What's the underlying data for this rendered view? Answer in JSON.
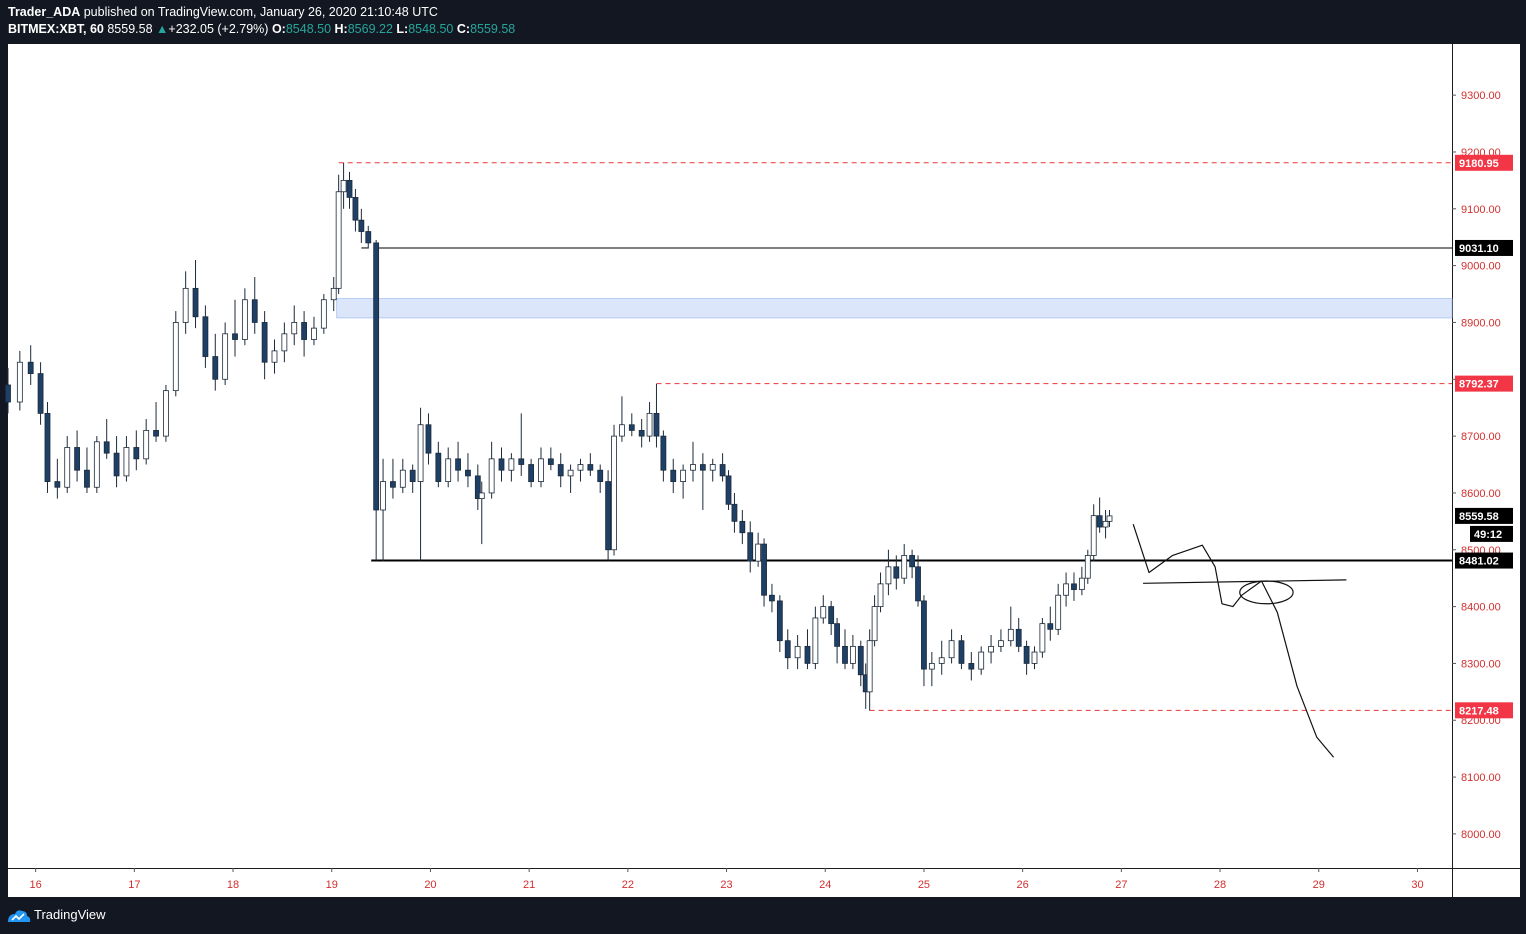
{
  "header": {
    "author": "Trader_ADA",
    "published_text": "published on TradingView.com, January 26, 2020 21:10:48 UTC",
    "symbol": "BITMEX:XBT, 60",
    "last": "8559.58",
    "change": "+232.05 (+2.79%)",
    "o_label": "O:",
    "o_value": "8548.50",
    "h_label": "H:",
    "h_value": "8569.22",
    "l_label": "L:",
    "l_value": "8548.50",
    "c_label": "C:",
    "c_value": "8559.58"
  },
  "footer": {
    "brand": "TradingView"
  },
  "colors": {
    "background": "#131722",
    "chart_bg": "#ffffff",
    "axis_text": "#d32f2f",
    "up_candle": "#ffffff",
    "down_candle": "#1e3f66",
    "red_line": "#e53935",
    "zone": "#dbe6fb",
    "accent_green": "#26a69a"
  },
  "chart_data": {
    "type": "candlestick",
    "timeframe": "60",
    "x_ticks": [
      "16",
      "17",
      "18",
      "19",
      "20",
      "21",
      "22",
      "23",
      "24",
      "25",
      "26",
      "27",
      "28",
      "29",
      "30"
    ],
    "x_range_days": [
      15.72,
      30.35
    ],
    "ylim": [
      7940,
      9390
    ],
    "y_ticks": [
      "9300.00",
      "9200.00",
      "9100.00",
      "9000.00",
      "8900.00",
      "8800.00",
      "8700.00",
      "8600.00",
      "8500.00",
      "8400.00",
      "8300.00",
      "8200.00",
      "8100.00",
      "8000.00"
    ],
    "levels": [
      {
        "value": 9180.95,
        "label": "9180.95",
        "style": "dashed-red",
        "from_day": 19.07
      },
      {
        "value": 9031.1,
        "label": "9031.10",
        "style": "solid-black",
        "from_day": 19.45
      },
      {
        "value": 8792.37,
        "label": "8792.37",
        "style": "dashed-red",
        "from_day": 22.29
      },
      {
        "value": 8481.02,
        "label": "8481.02",
        "style": "solid-black-bold",
        "from_day": 19.4
      },
      {
        "value": 8217.48,
        "label": "8217.48",
        "style": "dashed-red",
        "from_day": 24.45
      }
    ],
    "current_price": {
      "value": 8559.58,
      "label": "8559.58",
      "countdown": "49:12"
    },
    "zone": {
      "from_day": 19.05,
      "low": 8908,
      "high": 8942
    },
    "projection": [
      [
        27.12,
        8545
      ],
      [
        27.28,
        8460
      ],
      [
        27.52,
        8490
      ],
      [
        27.82,
        8508
      ],
      [
        27.95,
        8470
      ],
      [
        28.02,
        8405
      ],
      [
        28.13,
        8400
      ],
      [
        28.22,
        8420
      ],
      [
        28.42,
        8445
      ],
      [
        28.58,
        8390
      ],
      [
        28.78,
        8260
      ],
      [
        28.98,
        8170
      ],
      [
        29.15,
        8135
      ]
    ],
    "projection_line": {
      "from": [
        27.22,
        8441
      ],
      "to": [
        29.28,
        8447
      ]
    },
    "projection_ellipse": {
      "center": [
        28.47,
        8425
      ],
      "rx_days": 0.27,
      "ry_price": 20
    },
    "series": [
      {
        "t": 15.72,
        "o": 8790,
        "h": 8820,
        "l": 8740,
        "c": 8760
      },
      {
        "t": 15.84,
        "o": 8760,
        "h": 8850,
        "l": 8745,
        "c": 8830
      },
      {
        "t": 15.95,
        "o": 8830,
        "h": 8860,
        "l": 8790,
        "c": 8810
      },
      {
        "t": 16.05,
        "o": 8810,
        "h": 8830,
        "l": 8720,
        "c": 8740
      },
      {
        "t": 16.12,
        "o": 8740,
        "h": 8760,
        "l": 8600,
        "c": 8620
      },
      {
        "t": 16.22,
        "o": 8620,
        "h": 8660,
        "l": 8590,
        "c": 8610
      },
      {
        "t": 16.32,
        "o": 8610,
        "h": 8700,
        "l": 8600,
        "c": 8680
      },
      {
        "t": 16.42,
        "o": 8680,
        "h": 8710,
        "l": 8620,
        "c": 8640
      },
      {
        "t": 16.52,
        "o": 8640,
        "h": 8680,
        "l": 8600,
        "c": 8610
      },
      {
        "t": 16.62,
        "o": 8610,
        "h": 8700,
        "l": 8600,
        "c": 8690
      },
      {
        "t": 16.72,
        "o": 8690,
        "h": 8730,
        "l": 8660,
        "c": 8670
      },
      {
        "t": 16.82,
        "o": 8670,
        "h": 8700,
        "l": 8610,
        "c": 8630
      },
      {
        "t": 16.92,
        "o": 8630,
        "h": 8700,
        "l": 8620,
        "c": 8680
      },
      {
        "t": 17.02,
        "o": 8680,
        "h": 8710,
        "l": 8640,
        "c": 8660
      },
      {
        "t": 17.12,
        "o": 8660,
        "h": 8730,
        "l": 8650,
        "c": 8710
      },
      {
        "t": 17.22,
        "o": 8710,
        "h": 8760,
        "l": 8690,
        "c": 8700
      },
      {
        "t": 17.32,
        "o": 8700,
        "h": 8790,
        "l": 8690,
        "c": 8780
      },
      {
        "t": 17.42,
        "o": 8780,
        "h": 8920,
        "l": 8770,
        "c": 8900
      },
      {
        "t": 17.52,
        "o": 8900,
        "h": 8990,
        "l": 8880,
        "c": 8960
      },
      {
        "t": 17.62,
        "o": 8960,
        "h": 9010,
        "l": 8890,
        "c": 8910
      },
      {
        "t": 17.72,
        "o": 8910,
        "h": 8930,
        "l": 8820,
        "c": 8840
      },
      {
        "t": 17.82,
        "o": 8840,
        "h": 8880,
        "l": 8780,
        "c": 8800
      },
      {
        "t": 17.92,
        "o": 8800,
        "h": 8900,
        "l": 8790,
        "c": 8880
      },
      {
        "t": 18.02,
        "o": 8880,
        "h": 8940,
        "l": 8840,
        "c": 8870
      },
      {
        "t": 18.12,
        "o": 8870,
        "h": 8960,
        "l": 8860,
        "c": 8940
      },
      {
        "t": 18.22,
        "o": 8940,
        "h": 8980,
        "l": 8880,
        "c": 8900
      },
      {
        "t": 18.32,
        "o": 8900,
        "h": 8920,
        "l": 8800,
        "c": 8830
      },
      {
        "t": 18.42,
        "o": 8830,
        "h": 8870,
        "l": 8810,
        "c": 8850
      },
      {
        "t": 18.52,
        "o": 8850,
        "h": 8900,
        "l": 8830,
        "c": 8880
      },
      {
        "t": 18.62,
        "o": 8880,
        "h": 8930,
        "l": 8860,
        "c": 8900
      },
      {
        "t": 18.72,
        "o": 8900,
        "h": 8920,
        "l": 8840,
        "c": 8870
      },
      {
        "t": 18.82,
        "o": 8870,
        "h": 8910,
        "l": 8860,
        "c": 8890
      },
      {
        "t": 18.92,
        "o": 8890,
        "h": 8950,
        "l": 8880,
        "c": 8940
      },
      {
        "t": 19.02,
        "o": 8940,
        "h": 8980,
        "l": 8920,
        "c": 8960
      },
      {
        "t": 19.07,
        "o": 8960,
        "h": 9160,
        "l": 8950,
        "c": 9130
      },
      {
        "t": 19.12,
        "o": 9130,
        "h": 9181,
        "l": 9100,
        "c": 9150
      },
      {
        "t": 19.18,
        "o": 9150,
        "h": 9165,
        "l": 9100,
        "c": 9120
      },
      {
        "t": 19.24,
        "o": 9120,
        "h": 9135,
        "l": 9060,
        "c": 9080
      },
      {
        "t": 19.3,
        "o": 9080,
        "h": 9100,
        "l": 9040,
        "c": 9060
      },
      {
        "t": 19.37,
        "o": 9060,
        "h": 9070,
        "l": 9030,
        "c": 9040
      },
      {
        "t": 19.45,
        "o": 9040,
        "h": 9045,
        "l": 8481,
        "c": 8570
      },
      {
        "t": 19.52,
        "o": 8570,
        "h": 8660,
        "l": 8480,
        "c": 8620
      },
      {
        "t": 19.62,
        "o": 8620,
        "h": 8660,
        "l": 8590,
        "c": 8610
      },
      {
        "t": 19.72,
        "o": 8610,
        "h": 8660,
        "l": 8600,
        "c": 8640
      },
      {
        "t": 19.82,
        "o": 8640,
        "h": 8650,
        "l": 8600,
        "c": 8620
      },
      {
        "t": 19.9,
        "o": 8620,
        "h": 8750,
        "l": 8481,
        "c": 8720
      },
      {
        "t": 19.98,
        "o": 8720,
        "h": 8740,
        "l": 8650,
        "c": 8670
      },
      {
        "t": 20.08,
        "o": 8670,
        "h": 8690,
        "l": 8610,
        "c": 8620
      },
      {
        "t": 20.18,
        "o": 8620,
        "h": 8680,
        "l": 8610,
        "c": 8660
      },
      {
        "t": 20.28,
        "o": 8660,
        "h": 8690,
        "l": 8620,
        "c": 8640
      },
      {
        "t": 20.38,
        "o": 8640,
        "h": 8670,
        "l": 8610,
        "c": 8630
      },
      {
        "t": 20.48,
        "o": 8630,
        "h": 8650,
        "l": 8570,
        "c": 8590
      },
      {
        "t": 20.52,
        "o": 8590,
        "h": 8620,
        "l": 8510,
        "c": 8600
      },
      {
        "t": 20.62,
        "o": 8600,
        "h": 8690,
        "l": 8590,
        "c": 8660
      },
      {
        "t": 20.72,
        "o": 8660,
        "h": 8680,
        "l": 8620,
        "c": 8640
      },
      {
        "t": 20.82,
        "o": 8640,
        "h": 8670,
        "l": 8620,
        "c": 8660
      },
      {
        "t": 20.92,
        "o": 8660,
        "h": 8740,
        "l": 8630,
        "c": 8650
      },
      {
        "t": 21.02,
        "o": 8650,
        "h": 8660,
        "l": 8610,
        "c": 8620
      },
      {
        "t": 21.12,
        "o": 8620,
        "h": 8680,
        "l": 8610,
        "c": 8660
      },
      {
        "t": 21.22,
        "o": 8660,
        "h": 8680,
        "l": 8640,
        "c": 8650
      },
      {
        "t": 21.32,
        "o": 8650,
        "h": 8670,
        "l": 8610,
        "c": 8630
      },
      {
        "t": 21.42,
        "o": 8630,
        "h": 8650,
        "l": 8600,
        "c": 8640
      },
      {
        "t": 21.52,
        "o": 8640,
        "h": 8660,
        "l": 8620,
        "c": 8650
      },
      {
        "t": 21.62,
        "o": 8650,
        "h": 8670,
        "l": 8630,
        "c": 8640
      },
      {
        "t": 21.72,
        "o": 8640,
        "h": 8650,
        "l": 8600,
        "c": 8620
      },
      {
        "t": 21.8,
        "o": 8620,
        "h": 8640,
        "l": 8481,
        "c": 8500
      },
      {
        "t": 21.86,
        "o": 8500,
        "h": 8720,
        "l": 8490,
        "c": 8700
      },
      {
        "t": 21.94,
        "o": 8700,
        "h": 8770,
        "l": 8690,
        "c": 8720
      },
      {
        "t": 22.04,
        "o": 8720,
        "h": 8740,
        "l": 8700,
        "c": 8710
      },
      {
        "t": 22.14,
        "o": 8710,
        "h": 8730,
        "l": 8680,
        "c": 8700
      },
      {
        "t": 22.22,
        "o": 8700,
        "h": 8760,
        "l": 8690,
        "c": 8740
      },
      {
        "t": 22.29,
        "o": 8740,
        "h": 8792,
        "l": 8680,
        "c": 8700
      },
      {
        "t": 22.36,
        "o": 8700,
        "h": 8710,
        "l": 8620,
        "c": 8640
      },
      {
        "t": 22.46,
        "o": 8640,
        "h": 8660,
        "l": 8600,
        "c": 8620
      },
      {
        "t": 22.56,
        "o": 8620,
        "h": 8650,
        "l": 8590,
        "c": 8640
      },
      {
        "t": 22.66,
        "o": 8640,
        "h": 8690,
        "l": 8620,
        "c": 8650
      },
      {
        "t": 22.76,
        "o": 8650,
        "h": 8670,
        "l": 8570,
        "c": 8640
      },
      {
        "t": 22.86,
        "o": 8640,
        "h": 8660,
        "l": 8620,
        "c": 8650
      },
      {
        "t": 22.96,
        "o": 8650,
        "h": 8670,
        "l": 8620,
        "c": 8630
      },
      {
        "t": 23.02,
        "o": 8630,
        "h": 8640,
        "l": 8570,
        "c": 8580
      },
      {
        "t": 23.08,
        "o": 8580,
        "h": 8600,
        "l": 8530,
        "c": 8550
      },
      {
        "t": 23.16,
        "o": 8550,
        "h": 8570,
        "l": 8510,
        "c": 8530
      },
      {
        "t": 23.24,
        "o": 8530,
        "h": 8550,
        "l": 8460,
        "c": 8480
      },
      {
        "t": 23.32,
        "o": 8480,
        "h": 8530,
        "l": 8470,
        "c": 8510
      },
      {
        "t": 23.38,
        "o": 8510,
        "h": 8520,
        "l": 8400,
        "c": 8420
      },
      {
        "t": 23.46,
        "o": 8420,
        "h": 8440,
        "l": 8390,
        "c": 8410
      },
      {
        "t": 23.54,
        "o": 8410,
        "h": 8420,
        "l": 8320,
        "c": 8340
      },
      {
        "t": 23.62,
        "o": 8340,
        "h": 8360,
        "l": 8290,
        "c": 8310
      },
      {
        "t": 23.72,
        "o": 8310,
        "h": 8350,
        "l": 8290,
        "c": 8330
      },
      {
        "t": 23.82,
        "o": 8330,
        "h": 8360,
        "l": 8290,
        "c": 8300
      },
      {
        "t": 23.9,
        "o": 8300,
        "h": 8400,
        "l": 8290,
        "c": 8380
      },
      {
        "t": 23.98,
        "o": 8380,
        "h": 8420,
        "l": 8370,
        "c": 8400
      },
      {
        "t": 24.06,
        "o": 8400,
        "h": 8410,
        "l": 8350,
        "c": 8370
      },
      {
        "t": 24.12,
        "o": 8370,
        "h": 8380,
        "l": 8300,
        "c": 8330
      },
      {
        "t": 24.2,
        "o": 8330,
        "h": 8360,
        "l": 8290,
        "c": 8300
      },
      {
        "t": 24.28,
        "o": 8300,
        "h": 8350,
        "l": 8290,
        "c": 8330
      },
      {
        "t": 24.36,
        "o": 8330,
        "h": 8340,
        "l": 8260,
        "c": 8280
      },
      {
        "t": 24.41,
        "o": 8280,
        "h": 8300,
        "l": 8220,
        "c": 8250
      },
      {
        "t": 24.45,
        "o": 8250,
        "h": 8360,
        "l": 8217,
        "c": 8340
      },
      {
        "t": 24.5,
        "o": 8340,
        "h": 8420,
        "l": 8330,
        "c": 8400
      },
      {
        "t": 24.56,
        "o": 8400,
        "h": 8460,
        "l": 8390,
        "c": 8440
      },
      {
        "t": 24.64,
        "o": 8440,
        "h": 8500,
        "l": 8420,
        "c": 8470
      },
      {
        "t": 24.72,
        "o": 8470,
        "h": 8490,
        "l": 8430,
        "c": 8450
      },
      {
        "t": 24.8,
        "o": 8450,
        "h": 8510,
        "l": 8440,
        "c": 8490
      },
      {
        "t": 24.88,
        "o": 8490,
        "h": 8500,
        "l": 8450,
        "c": 8470
      },
      {
        "t": 24.94,
        "o": 8470,
        "h": 8490,
        "l": 8400,
        "c": 8410
      },
      {
        "t": 25.0,
        "o": 8410,
        "h": 8420,
        "l": 8260,
        "c": 8290
      },
      {
        "t": 25.08,
        "o": 8290,
        "h": 8320,
        "l": 8260,
        "c": 8300
      },
      {
        "t": 25.18,
        "o": 8300,
        "h": 8340,
        "l": 8280,
        "c": 8310
      },
      {
        "t": 25.28,
        "o": 8310,
        "h": 8360,
        "l": 8300,
        "c": 8340
      },
      {
        "t": 25.38,
        "o": 8340,
        "h": 8350,
        "l": 8290,
        "c": 8300
      },
      {
        "t": 25.48,
        "o": 8300,
        "h": 8320,
        "l": 8270,
        "c": 8290
      },
      {
        "t": 25.58,
        "o": 8290,
        "h": 8330,
        "l": 8280,
        "c": 8320
      },
      {
        "t": 25.68,
        "o": 8320,
        "h": 8350,
        "l": 8300,
        "c": 8330
      },
      {
        "t": 25.78,
        "o": 8330,
        "h": 8360,
        "l": 8320,
        "c": 8340
      },
      {
        "t": 25.88,
        "o": 8340,
        "h": 8400,
        "l": 8330,
        "c": 8360
      },
      {
        "t": 25.96,
        "o": 8360,
        "h": 8380,
        "l": 8320,
        "c": 8330
      },
      {
        "t": 26.04,
        "o": 8330,
        "h": 8340,
        "l": 8280,
        "c": 8300
      },
      {
        "t": 26.12,
        "o": 8300,
        "h": 8330,
        "l": 8290,
        "c": 8320
      },
      {
        "t": 26.2,
        "o": 8320,
        "h": 8380,
        "l": 8310,
        "c": 8370
      },
      {
        "t": 26.28,
        "o": 8370,
        "h": 8400,
        "l": 8340,
        "c": 8360
      },
      {
        "t": 26.36,
        "o": 8360,
        "h": 8440,
        "l": 8350,
        "c": 8420
      },
      {
        "t": 26.44,
        "o": 8420,
        "h": 8460,
        "l": 8400,
        "c": 8440
      },
      {
        "t": 26.52,
        "o": 8440,
        "h": 8460,
        "l": 8410,
        "c": 8430
      },
      {
        "t": 26.6,
        "o": 8430,
        "h": 8470,
        "l": 8420,
        "c": 8450
      },
      {
        "t": 26.66,
        "o": 8450,
        "h": 8500,
        "l": 8440,
        "c": 8490
      },
      {
        "t": 26.72,
        "o": 8490,
        "h": 8580,
        "l": 8480,
        "c": 8560
      },
      {
        "t": 26.78,
        "o": 8560,
        "h": 8592,
        "l": 8530,
        "c": 8540
      },
      {
        "t": 26.84,
        "o": 8540,
        "h": 8570,
        "l": 8520,
        "c": 8550
      },
      {
        "t": 26.88,
        "o": 8550,
        "h": 8570,
        "l": 8540,
        "c": 8559.58
      }
    ]
  }
}
